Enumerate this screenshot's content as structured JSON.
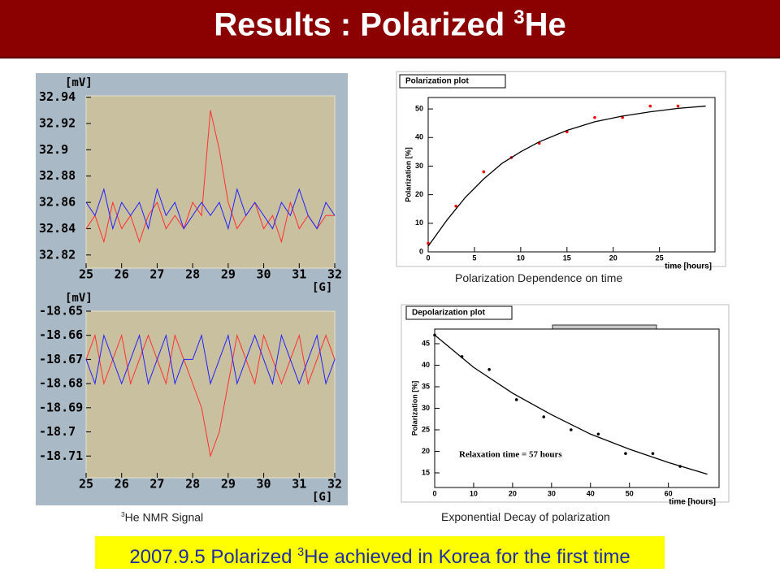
{
  "header": {
    "title": "Results : Polarized ",
    "title_sup": "3",
    "title_tail": "He"
  },
  "captions": {
    "nmr_sup": "3",
    "nmr": "He NMR Signal",
    "polarization": "Polarization Dependence on time",
    "decay": "Exponential Decay of polarization"
  },
  "banner": {
    "text": "2007.9.5 Polarized ",
    "sup": "3",
    "tail": "He achieved in Korea for the first time"
  },
  "chart_data": [
    {
      "type": "line",
      "y_label": "[mV]",
      "x_label": "[G]",
      "xlim": [
        25,
        32
      ],
      "ylim": [
        32.81,
        32.941
      ],
      "xticks": [
        25,
        26,
        27,
        28,
        29,
        30,
        31,
        32
      ],
      "yticks": [
        32.82,
        32.84,
        32.86,
        32.88,
        32.9,
        32.92,
        32.94
      ],
      "x": [
        25,
        25.25,
        25.5,
        25.75,
        26,
        26.25,
        26.5,
        26.75,
        27,
        27.25,
        27.5,
        27.75,
        28,
        28.25,
        28.5,
        28.75,
        29,
        29.25,
        29.5,
        29.75,
        30,
        30.25,
        30.5,
        30.75,
        31,
        31.25,
        31.5,
        31.75,
        32
      ],
      "series": [
        {
          "color": "#ff3030",
          "values": [
            32.84,
            32.85,
            32.83,
            32.86,
            32.84,
            32.85,
            32.83,
            32.85,
            32.86,
            32.84,
            32.85,
            32.84,
            32.86,
            32.85,
            32.93,
            32.9,
            32.86,
            32.84,
            32.85,
            32.86,
            32.84,
            32.85,
            32.83,
            32.86,
            32.84,
            32.85,
            32.84,
            32.85,
            32.85
          ]
        },
        {
          "color": "#2020ff",
          "values": [
            32.86,
            32.85,
            32.87,
            32.84,
            32.86,
            32.85,
            32.86,
            32.84,
            32.87,
            32.85,
            32.86,
            32.84,
            32.85,
            32.86,
            32.85,
            32.86,
            32.84,
            32.87,
            32.85,
            32.86,
            32.85,
            32.84,
            32.86,
            32.85,
            32.87,
            32.85,
            32.84,
            32.86,
            32.85
          ]
        }
      ]
    },
    {
      "type": "line",
      "y_label": "[mV]",
      "x_label": "[G]",
      "xlim": [
        25,
        32
      ],
      "ylim": [
        -18.719,
        -18.65
      ],
      "xticks": [
        25,
        26,
        27,
        28,
        29,
        30,
        31,
        32
      ],
      "yticks": [
        -18.65,
        -18.66,
        -18.67,
        -18.68,
        -18.69,
        -18.7,
        -18.71
      ],
      "x": [
        25,
        25.25,
        25.5,
        25.75,
        26,
        26.25,
        26.5,
        26.75,
        27,
        27.25,
        27.5,
        27.75,
        28,
        28.25,
        28.5,
        28.75,
        29,
        29.25,
        29.5,
        29.75,
        30,
        30.25,
        30.5,
        30.75,
        31,
        31.25,
        31.5,
        31.75,
        32
      ],
      "series": [
        {
          "color": "#ff3030",
          "values": [
            -18.67,
            -18.66,
            -18.68,
            -18.67,
            -18.66,
            -18.68,
            -18.67,
            -18.66,
            -18.67,
            -18.68,
            -18.66,
            -18.67,
            -18.68,
            -18.69,
            -18.71,
            -18.7,
            -18.68,
            -18.66,
            -18.67,
            -18.68,
            -18.66,
            -18.67,
            -18.68,
            -18.67,
            -18.66,
            -18.68,
            -18.67,
            -18.66,
            -18.67
          ]
        },
        {
          "color": "#2020ff",
          "values": [
            -18.67,
            -18.68,
            -18.66,
            -18.67,
            -18.68,
            -18.67,
            -18.66,
            -18.68,
            -18.67,
            -18.66,
            -18.68,
            -18.67,
            -18.67,
            -18.66,
            -18.68,
            -18.67,
            -18.66,
            -18.68,
            -18.67,
            -18.66,
            -18.67,
            -18.68,
            -18.66,
            -18.67,
            -18.68,
            -18.67,
            -18.66,
            -18.68,
            -18.67
          ]
        }
      ]
    },
    {
      "type": "scatter",
      "title": "Polarization plot",
      "y_label": "Polarization [%]",
      "x_label": "time [hours]",
      "xlim": [
        0,
        31
      ],
      "ylim": [
        0,
        54
      ],
      "xticks": [
        0,
        5,
        10,
        15,
        20,
        25
      ],
      "yticks": [
        0,
        10,
        20,
        30,
        40,
        50
      ],
      "series": [
        {
          "type": "scatter",
          "color": "#ff0000",
          "x": [
            0,
            3,
            6,
            9,
            12,
            15,
            18,
            21,
            24,
            27
          ],
          "values": [
            3,
            16,
            28,
            33,
            38,
            42,
            47,
            47,
            51,
            51
          ]
        },
        {
          "type": "line",
          "color": "#000000",
          "x": [
            0,
            2,
            4,
            6,
            8,
            10,
            12,
            15,
            18,
            21,
            24,
            27,
            30
          ],
          "values": [
            2,
            11,
            19,
            25.5,
            31,
            35,
            38.5,
            42.5,
            45.5,
            47.5,
            49,
            50.2,
            51
          ]
        }
      ]
    },
    {
      "type": "scatter",
      "title": "Depolarization plot",
      "y_label": "Polarization [%]",
      "x_label": "time [hours]",
      "annotation": "Relaxation time = 57 hours",
      "xlim": [
        0,
        73
      ],
      "ylim": [
        11.6,
        48.4
      ],
      "xticks": [
        0,
        10,
        20,
        30,
        40,
        50,
        60
      ],
      "yticks": [
        15,
        20,
        25,
        30,
        35,
        40,
        45
      ],
      "series": [
        {
          "type": "scatter",
          "color": "#000000",
          "x": [
            0,
            7,
            14,
            21,
            28,
            35,
            42,
            49,
            56,
            63
          ],
          "values": [
            47,
            42,
            39,
            32,
            28,
            25,
            24,
            19.5,
            19.5,
            16.5
          ]
        },
        {
          "type": "line",
          "color": "#000000",
          "x": [
            0,
            10,
            20,
            30,
            40,
            50,
            60,
            70
          ],
          "values": [
            47,
            39.5,
            33.5,
            28.5,
            24,
            20.5,
            17.4,
            14.7
          ]
        }
      ]
    }
  ]
}
